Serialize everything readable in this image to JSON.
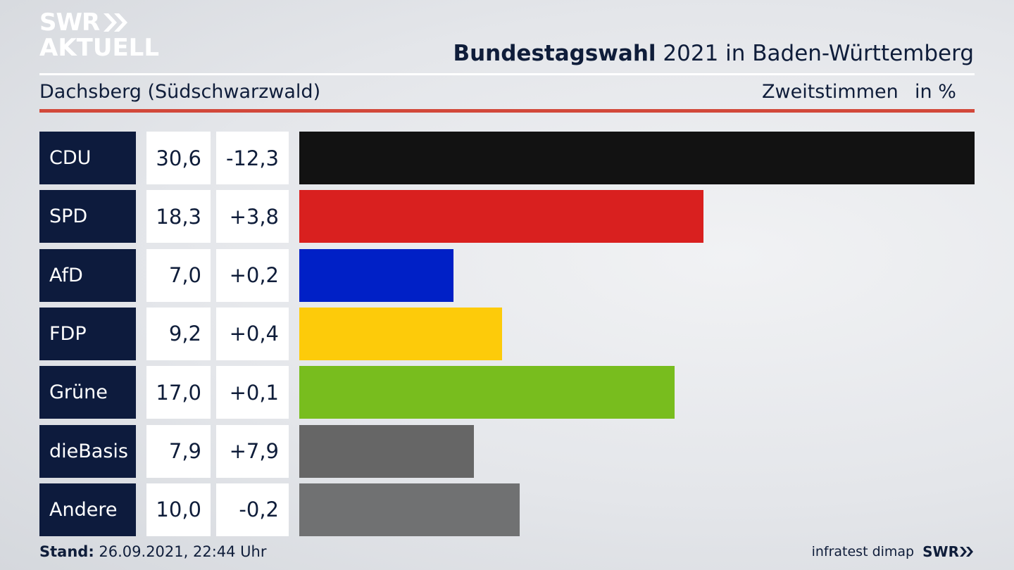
{
  "header": {
    "logo_line1": "SWR",
    "logo_line2": "AKTUELL",
    "title_bold": "Bundestagswahl",
    "title_rest": " 2021 in Baden-Württemberg",
    "subtitle": "Dachsberg (Südschwarzwald)",
    "measure": "Zweitstimmen",
    "unit": "in %"
  },
  "chart_data": {
    "type": "bar",
    "orientation": "horizontal",
    "categories": [
      "CDU",
      "SPD",
      "AfD",
      "FDP",
      "Grüne",
      "dieBasis",
      "Andere"
    ],
    "values": [
      30.6,
      18.3,
      7.0,
      9.2,
      17.0,
      7.9,
      10.0
    ],
    "value_labels": [
      "30,6",
      "18,3",
      "7,0",
      "9,2",
      "17,0",
      "7,9",
      "10,0"
    ],
    "diff_labels": [
      "-12,3",
      "+3,8",
      "+0,2",
      "+0,4",
      "+0,1",
      "+7,9",
      "-0,2"
    ],
    "colors": [
      "#121212",
      "#d9201f",
      "#0020c6",
      "#fdcb0a",
      "#78bd1e",
      "#666666",
      "#707172"
    ],
    "title": "Bundestagswahl 2021 in Baden-Württemberg",
    "subtitle": "Dachsberg (Südschwarzwald)",
    "xlabel": "",
    "ylabel": "",
    "xlim": [
      0,
      30.6
    ],
    "grid": false
  },
  "footer": {
    "stand_label": "Stand:",
    "stand_value": " 26.09.2021, 22:44 Uhr",
    "source": "infratest dimap",
    "brand": "SWR"
  }
}
